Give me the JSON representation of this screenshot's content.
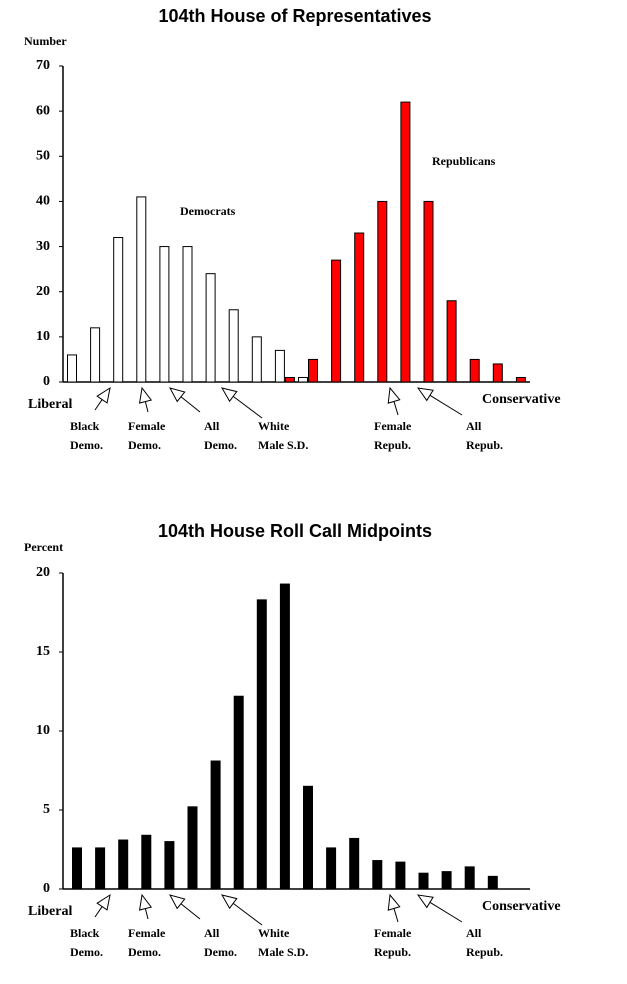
{
  "chart_data": [
    {
      "type": "bar",
      "title": "104th House of Representatives",
      "y_label": "Number",
      "categories": [
        null,
        null,
        null,
        null,
        null,
        null,
        null,
        null,
        null,
        null,
        null,
        null,
        null,
        null,
        null,
        null,
        null,
        null,
        null,
        null
      ],
      "series": [
        {
          "name": "Democrats",
          "color": "#ffffff",
          "values": [
            6,
            12,
            32,
            41,
            30,
            30,
            24,
            16,
            10,
            7,
            1,
            null,
            null,
            null,
            null,
            null,
            null,
            null,
            null,
            null
          ]
        },
        {
          "name": "Republicans",
          "color": "#ff0000",
          "values": [
            null,
            null,
            null,
            null,
            null,
            null,
            null,
            null,
            null,
            1,
            5,
            27,
            33,
            40,
            62,
            40,
            18,
            5,
            4,
            1
          ]
        }
      ],
      "ylim": [
        0,
        70
      ],
      "yticks": [
        0,
        10,
        20,
        30,
        40,
        50,
        60,
        70
      ],
      "annotations": {
        "left": "Liberal",
        "right": "Conservative"
      },
      "markers": [
        [
          "Black",
          "Demo."
        ],
        [
          "Female",
          "Demo."
        ],
        [
          "All",
          "Demo."
        ],
        [
          "White",
          "Male S.D."
        ],
        [
          "Female",
          "Repub."
        ],
        [
          "All",
          "Repub."
        ]
      ]
    },
    {
      "type": "bar",
      "title": "104th House Roll Call Midpoints",
      "y_label": "Percent",
      "categories": [
        null,
        null,
        null,
        null,
        null,
        null,
        null,
        null,
        null,
        null,
        null,
        null,
        null,
        null,
        null,
        null,
        null,
        null,
        null
      ],
      "values": [
        2.6,
        2.6,
        3.1,
        3.4,
        3.0,
        5.2,
        8.1,
        12.2,
        18.3,
        19.3,
        6.5,
        2.6,
        3.2,
        1.8,
        1.7,
        1.0,
        1.1,
        1.4,
        0.8
      ],
      "color": "#000000",
      "ylim": [
        0,
        20
      ],
      "yticks": [
        0,
        5,
        10,
        15,
        20
      ],
      "annotations": {
        "left": "Liberal",
        "right": "Conservative"
      },
      "markers": [
        [
          "Black",
          "Demo."
        ],
        [
          "Female",
          "Demo."
        ],
        [
          "All",
          "Demo."
        ],
        [
          "White",
          "Male S.D."
        ],
        [
          "Female",
          "Repub."
        ],
        [
          "All",
          "Repub."
        ]
      ]
    }
  ]
}
